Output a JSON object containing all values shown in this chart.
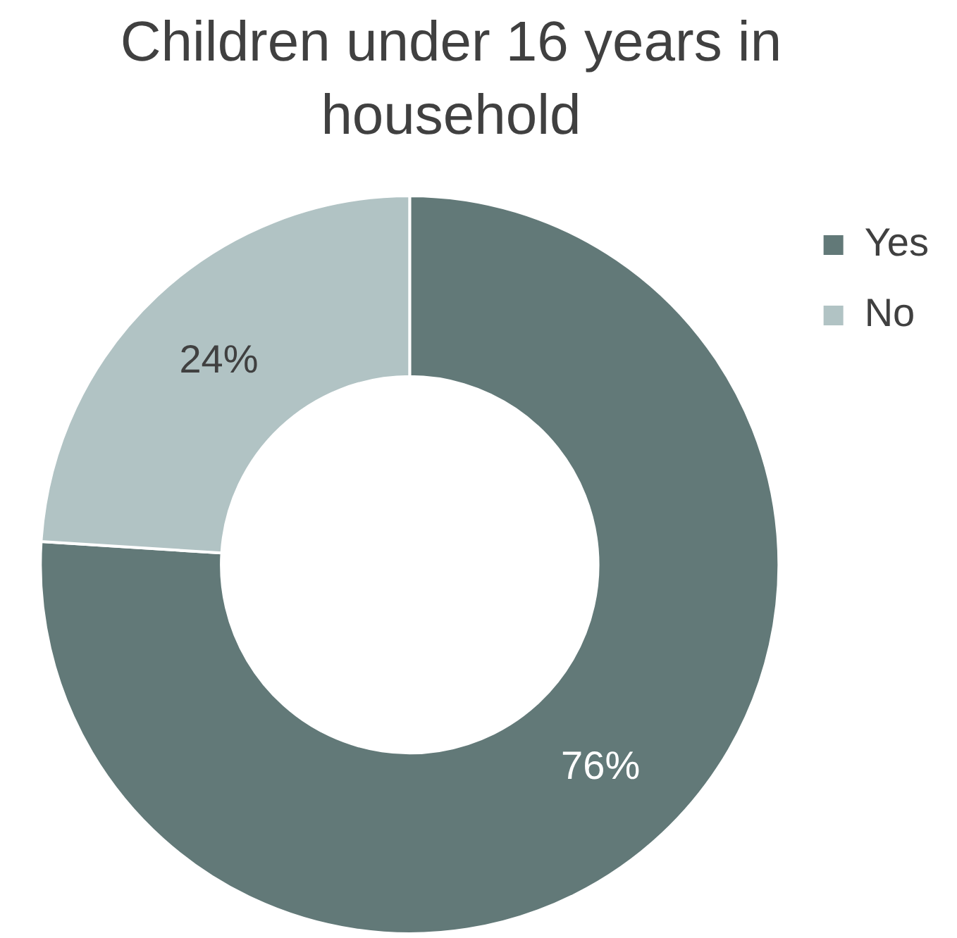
{
  "chart_data": {
    "type": "donut",
    "title": "Children under 16 years in household",
    "categories": [
      "Yes",
      "No"
    ],
    "values": [
      76,
      24
    ],
    "colors": [
      "#627978",
      "#b1c3c4"
    ],
    "value_labels": [
      "76%",
      "24%"
    ],
    "legend": "right"
  }
}
